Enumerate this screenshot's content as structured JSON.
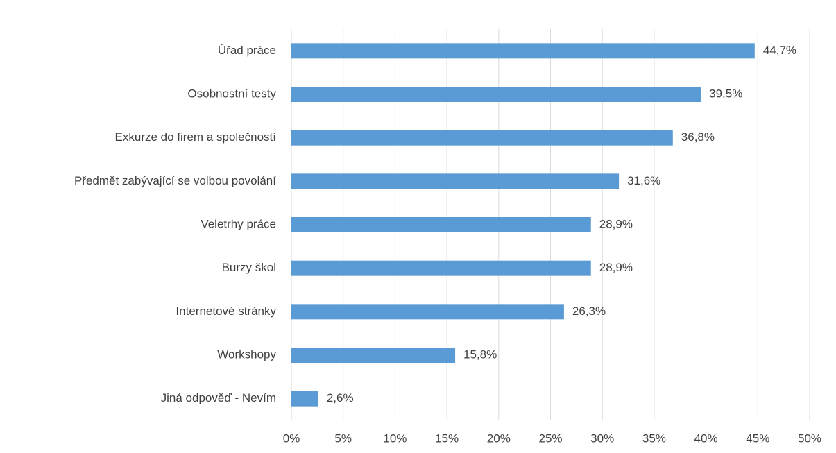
{
  "chart_data": {
    "type": "bar",
    "orientation": "horizontal",
    "categories": [
      "Úřad práce",
      "Osobnostní testy",
      "Exkurze do firem a společností",
      "Předmět zabývající se volbou povolání",
      "Veletrhy práce",
      "Burzy škol",
      "Internetové stránky",
      "Workshopy",
      "Jiná odpověď - Nevím"
    ],
    "values": [
      44.7,
      39.5,
      36.8,
      31.6,
      28.9,
      28.9,
      26.3,
      15.8,
      2.6
    ],
    "value_labels": [
      "44,7%",
      "39,5%",
      "36,8%",
      "31,6%",
      "28,9%",
      "28,9%",
      "26,3%",
      "15,8%",
      "2,6%"
    ],
    "color": "#5b9bd5",
    "xlim": [
      0,
      50
    ],
    "xticks": [
      {
        "value": 0,
        "label": "0%"
      },
      {
        "value": 5,
        "label": "5%"
      },
      {
        "value": 10,
        "label": "10%"
      },
      {
        "value": 15,
        "label": "15%"
      },
      {
        "value": 20,
        "label": "20%"
      },
      {
        "value": 25,
        "label": "25%"
      },
      {
        "value": 30,
        "label": "30%"
      },
      {
        "value": 35,
        "label": "35%"
      },
      {
        "value": 40,
        "label": "40%"
      },
      {
        "value": 45,
        "label": "45%"
      },
      {
        "value": 50,
        "label": "50%"
      }
    ],
    "grid": true
  }
}
